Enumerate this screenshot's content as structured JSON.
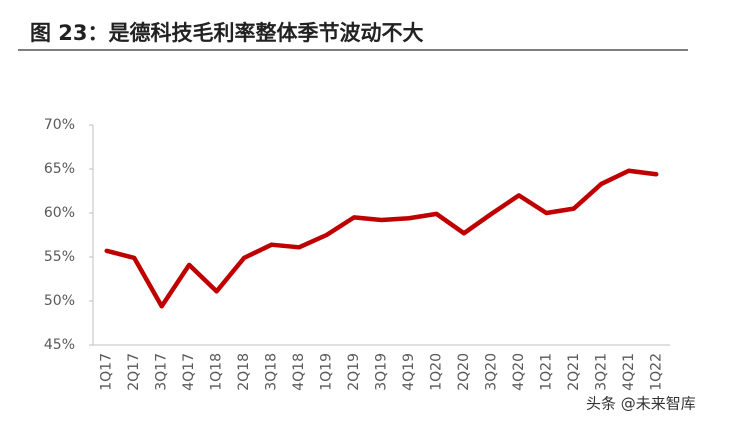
{
  "title": "图 23：是德科技毛利率整体季节波动不大",
  "watermark": "头条 @未来智库",
  "chart_data": {
    "type": "line",
    "categories": [
      "1Q17",
      "2Q17",
      "3Q17",
      "4Q17",
      "1Q18",
      "2Q18",
      "3Q18",
      "4Q18",
      "1Q19",
      "2Q19",
      "3Q19",
      "4Q19",
      "1Q20",
      "2Q20",
      "3Q20",
      "4Q20",
      "1Q21",
      "2Q21",
      "3Q21",
      "4Q21",
      "1Q22"
    ],
    "series": [
      {
        "name": "毛利率",
        "color": "#c00000",
        "values": [
          55.7,
          54.9,
          49.4,
          54.1,
          51.1,
          54.9,
          56.4,
          56.1,
          57.5,
          59.5,
          59.2,
          59.4,
          59.9,
          57.7,
          59.9,
          62.0,
          60.0,
          60.5,
          63.3,
          64.8,
          64.4
        ]
      }
    ],
    "ylim": [
      45,
      70
    ],
    "yticks": [
      {
        "value": 45,
        "label": "45%"
      },
      {
        "value": 50,
        "label": "50%"
      },
      {
        "value": 55,
        "label": "55%"
      },
      {
        "value": 60,
        "label": "60%"
      },
      {
        "value": 65,
        "label": "65%"
      },
      {
        "value": 70,
        "label": "70%"
      }
    ],
    "grid": false
  }
}
